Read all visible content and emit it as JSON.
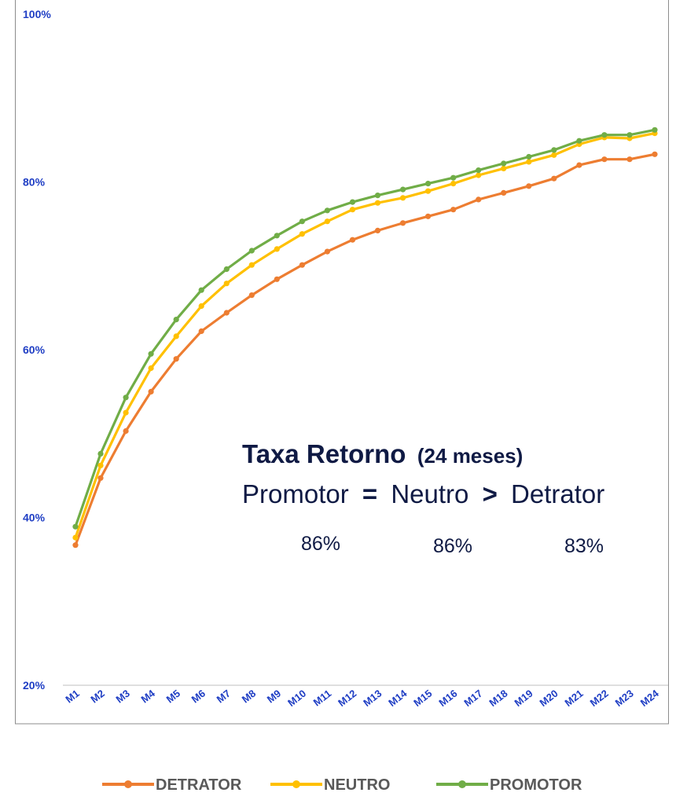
{
  "chart_data": {
    "type": "line",
    "categories": [
      "M1",
      "M2",
      "M3",
      "M4",
      "M5",
      "M6",
      "M7",
      "M8",
      "M9",
      "M10",
      "M11",
      "M12",
      "M13",
      "M14",
      "M15",
      "M16",
      "M17",
      "M18",
      "M19",
      "M20",
      "M21",
      "M22",
      "M23",
      "M24"
    ],
    "y_ticks": [
      "20%",
      "40%",
      "60%",
      "80%",
      "100%"
    ],
    "ylim": [
      20,
      100
    ],
    "grid": false,
    "legend_position": "bottom",
    "series": [
      {
        "name": "DETRATOR",
        "color": "#ed7d31",
        "values": [
          36.7,
          44.7,
          50.3,
          55.0,
          58.9,
          62.2,
          64.4,
          66.5,
          68.4,
          70.1,
          71.7,
          73.1,
          74.2,
          75.1,
          75.9,
          76.7,
          77.9,
          78.7,
          79.5,
          80.4,
          82.0,
          82.7,
          82.7,
          83.3
        ]
      },
      {
        "name": "NEUTRO",
        "color": "#ffc000",
        "values": [
          37.6,
          46.2,
          52.5,
          57.8,
          61.6,
          65.2,
          67.9,
          70.1,
          72.0,
          73.8,
          75.3,
          76.7,
          77.5,
          78.1,
          78.9,
          79.8,
          80.8,
          81.6,
          82.4,
          83.2,
          84.5,
          85.3,
          85.2,
          85.8
        ]
      },
      {
        "name": "PROMOTOR",
        "color": "#70ad47",
        "values": [
          38.9,
          47.6,
          54.3,
          59.5,
          63.6,
          67.1,
          69.6,
          71.8,
          73.6,
          75.3,
          76.6,
          77.6,
          78.4,
          79.1,
          79.8,
          80.5,
          81.4,
          82.2,
          83.0,
          83.8,
          84.9,
          85.6,
          85.6,
          86.2
        ]
      }
    ],
    "annotation": {
      "title": "Taxa Retorno",
      "title_suffix": "(24 meses)",
      "word_promotor": "Promotor",
      "op_equal": "=",
      "word_neutro": "Neutro",
      "op_greater": ">",
      "word_detrator": "Detrator",
      "value_promotor": "86%",
      "value_neutro": "86%",
      "value_detrator": "83%"
    }
  }
}
